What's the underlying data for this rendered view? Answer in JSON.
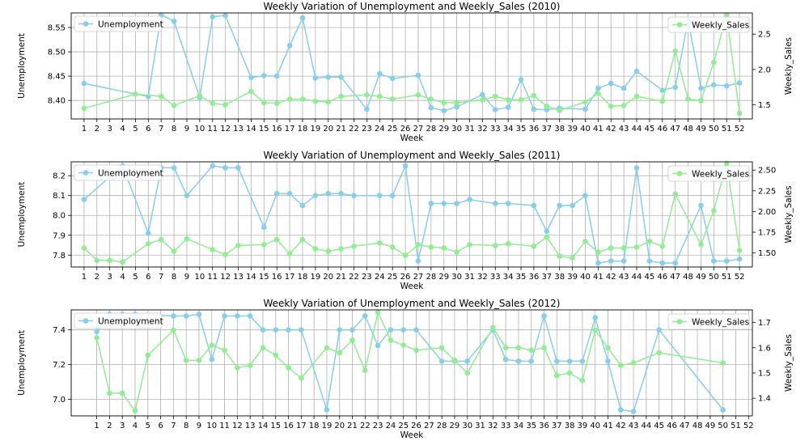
{
  "colors": {
    "unemployment": "#87ceeb",
    "weekly_sales": "#90ee90",
    "grid": "#b0b0b0"
  },
  "chart_data": [
    {
      "type": "line",
      "title": "Weekly Variation of Unemployment and Weekly_Sales (2010)",
      "xlabel": "Week",
      "ylabel_left": "Unemployment",
      "ylabel_right": "Weekly_Sales",
      "x_ticks": [
        1,
        2,
        3,
        4,
        5,
        6,
        7,
        8,
        9,
        10,
        11,
        12,
        13,
        14,
        15,
        16,
        17,
        18,
        19,
        20,
        21,
        22,
        23,
        24,
        25,
        26,
        27,
        28,
        29,
        30,
        31,
        32,
        33,
        34,
        35,
        36,
        37,
        38,
        39,
        40,
        41,
        42,
        43,
        44,
        45,
        46,
        47,
        48,
        49,
        50,
        51,
        52
      ],
      "xlim": [
        0,
        53
      ],
      "y_left": {
        "lim": [
          8.362,
          8.58
        ],
        "ticks": [
          8.4,
          8.45,
          8.5,
          8.55
        ],
        "tick_labels": [
          "8.40",
          "8.45",
          "8.50",
          "8.55"
        ]
      },
      "y_right": {
        "lim": [
          1.3,
          2.8
        ],
        "ticks": [
          1.5,
          2.0,
          2.5
        ],
        "tick_labels": [
          "1.5",
          "2.0",
          "2.5"
        ]
      },
      "grid": true,
      "legend_placement": {
        "left": "upper-left",
        "right": "upper-right"
      },
      "series": [
        {
          "name": "Unemployment",
          "axis": "left",
          "x": [
            1,
            6,
            7,
            8,
            10,
            11,
            12,
            14,
            15,
            16,
            17,
            18,
            19,
            20,
            21,
            23,
            24,
            25,
            27,
            28,
            29,
            30,
            32,
            33,
            34,
            35,
            36,
            37,
            38,
            40,
            41,
            42,
            43,
            44,
            46,
            47,
            48,
            49,
            50,
            51,
            52
          ],
          "y": [
            8.435,
            8.408,
            8.576,
            8.563,
            8.406,
            8.572,
            8.575,
            8.447,
            8.451,
            8.45,
            8.513,
            8.57,
            8.446,
            8.448,
            8.448,
            8.382,
            8.455,
            8.445,
            8.452,
            8.385,
            8.379,
            8.387,
            8.412,
            8.381,
            8.386,
            8.443,
            8.382,
            8.381,
            8.384,
            8.382,
            8.425,
            8.435,
            8.425,
            8.46,
            8.421,
            8.427,
            8.565,
            8.425,
            8.432,
            8.43,
            8.436
          ]
        },
        {
          "name": "Weekly_Sales",
          "axis": "right",
          "x": [
            1,
            5,
            7,
            8,
            10,
            11,
            12,
            14,
            15,
            16,
            17,
            18,
            19,
            20,
            21,
            23,
            24,
            25,
            27,
            28,
            29,
            30,
            32,
            33,
            34,
            35,
            36,
            37,
            38,
            40,
            41,
            42,
            43,
            44,
            46,
            47,
            48,
            49,
            50,
            51,
            52
          ],
          "y": [
            1.45,
            1.65,
            1.62,
            1.49,
            1.63,
            1.52,
            1.5,
            1.69,
            1.53,
            1.52,
            1.58,
            1.58,
            1.55,
            1.54,
            1.62,
            1.64,
            1.62,
            1.58,
            1.64,
            1.58,
            1.53,
            1.53,
            1.57,
            1.62,
            1.57,
            1.57,
            1.63,
            1.48,
            1.42,
            1.54,
            1.66,
            1.48,
            1.49,
            1.62,
            1.55,
            2.26,
            1.58,
            1.56,
            2.1,
            2.77,
            1.38
          ]
        }
      ]
    },
    {
      "type": "line",
      "title": "Weekly Variation of Unemployment and Weekly_Sales (2011)",
      "xlabel": "Week",
      "ylabel_left": "Unemployment",
      "ylabel_right": "Weekly_Sales",
      "x_ticks": [
        1,
        2,
        3,
        4,
        5,
        6,
        7,
        8,
        9,
        10,
        11,
        12,
        13,
        14,
        15,
        16,
        17,
        18,
        19,
        20,
        21,
        22,
        23,
        24,
        25,
        26,
        27,
        28,
        29,
        30,
        31,
        32,
        33,
        34,
        35,
        36,
        37,
        38,
        39,
        40,
        41,
        42,
        43,
        44,
        45,
        46,
        47,
        48,
        49,
        50,
        51,
        52
      ],
      "xlim": [
        0,
        53
      ],
      "y_left": {
        "lim": [
          7.74,
          8.27
        ],
        "ticks": [
          7.8,
          7.9,
          8.0,
          8.1,
          8.2
        ],
        "tick_labels": [
          "7.8",
          "7.9",
          "8.0",
          "8.1",
          "8.2"
        ]
      },
      "y_right": {
        "lim": [
          1.33,
          2.6
        ],
        "ticks": [
          1.5,
          1.75,
          2.0,
          2.25,
          2.5
        ],
        "tick_labels": [
          "1.50",
          "1.75",
          "2.00",
          "2.25",
          "2.50"
        ]
      },
      "grid": true,
      "legend_placement": {
        "left": "upper-left",
        "right": "upper-right"
      },
      "series": [
        {
          "name": "Unemployment",
          "axis": "left",
          "x": [
            1,
            4,
            6,
            7,
            8,
            9,
            11,
            12,
            13,
            15,
            16,
            17,
            18,
            19,
            20,
            21,
            22,
            24,
            25,
            26,
            27,
            28,
            29,
            30,
            31,
            33,
            34,
            36,
            37,
            38,
            39,
            40,
            41,
            42,
            43,
            44,
            45,
            46,
            47,
            49,
            50,
            51,
            52
          ],
          "y": [
            8.08,
            8.25,
            7.91,
            8.24,
            8.24,
            8.1,
            8.25,
            8.24,
            8.24,
            7.94,
            8.11,
            8.11,
            8.05,
            8.1,
            8.11,
            8.11,
            8.1,
            8.1,
            8.1,
            8.25,
            7.77,
            8.06,
            8.06,
            8.06,
            8.08,
            8.06,
            8.06,
            8.05,
            7.92,
            8.05,
            8.05,
            8.1,
            7.76,
            7.77,
            7.77,
            8.24,
            7.77,
            7.76,
            7.76,
            8.05,
            7.77,
            7.77,
            7.78
          ]
        },
        {
          "name": "Weekly_Sales",
          "axis": "right",
          "x": [
            1,
            2,
            3,
            4,
            6,
            7,
            8,
            9,
            11,
            12,
            13,
            15,
            16,
            17,
            18,
            19,
            20,
            21,
            22,
            24,
            25,
            26,
            27,
            28,
            29,
            30,
            31,
            33,
            34,
            36,
            37,
            38,
            39,
            40,
            41,
            42,
            43,
            44,
            45,
            46,
            47,
            49,
            50,
            51,
            52
          ],
          "y": [
            1.56,
            1.41,
            1.41,
            1.39,
            1.61,
            1.66,
            1.52,
            1.67,
            1.54,
            1.48,
            1.59,
            1.6,
            1.66,
            1.49,
            1.66,
            1.55,
            1.52,
            1.55,
            1.58,
            1.62,
            1.57,
            1.47,
            1.6,
            1.57,
            1.56,
            1.51,
            1.6,
            1.59,
            1.61,
            1.58,
            1.69,
            1.46,
            1.44,
            1.64,
            1.51,
            1.56,
            1.56,
            1.57,
            1.64,
            1.58,
            2.21,
            1.6,
            2.01,
            2.58,
            1.53
          ]
        }
      ]
    },
    {
      "type": "line",
      "title": "Weekly Variation of Unemployment and Weekly_Sales (2012)",
      "xlabel": "Week",
      "ylabel_left": "Unemployment",
      "ylabel_right": "Weekly_Sales",
      "x_ticks": [
        1,
        2,
        3,
        4,
        5,
        6,
        7,
        8,
        9,
        10,
        11,
        12,
        13,
        14,
        15,
        16,
        17,
        18,
        19,
        20,
        21,
        22,
        23,
        24,
        25,
        26,
        27,
        28,
        29,
        30,
        31,
        32,
        33,
        34,
        35,
        36,
        37,
        38,
        39,
        40,
        41,
        42,
        43,
        44,
        45,
        46,
        47,
        48,
        49,
        50,
        51,
        52
      ],
      "xlim": [
        -1,
        52.3
      ],
      "y_left": {
        "lim": [
          6.905,
          7.515
        ],
        "ticks": [
          7.0,
          7.2,
          7.4
        ],
        "tick_labels": [
          "7.0",
          "7.2",
          "7.4"
        ]
      },
      "y_right": {
        "lim": [
          1.33,
          1.75
        ],
        "ticks": [
          1.4,
          1.5,
          1.6,
          1.7
        ],
        "tick_labels": [
          "1.4",
          "1.5",
          "1.6",
          "1.7"
        ]
      },
      "grid": true,
      "legend_placement": {
        "left": "upper-left",
        "right": "upper-right"
      },
      "series": [
        {
          "name": "Unemployment",
          "axis": "left",
          "x": [
            1,
            2,
            3,
            4,
            7,
            8,
            9,
            10,
            11,
            12,
            13,
            14,
            15,
            16,
            17,
            19,
            20,
            21,
            22,
            23,
            24,
            25,
            26,
            28,
            29,
            30,
            32,
            33,
            34,
            35,
            36,
            37,
            38,
            39,
            40,
            41,
            42,
            43,
            45,
            50
          ],
          "y": [
            7.39,
            7.49,
            7.49,
            7.49,
            7.48,
            7.48,
            7.49,
            7.23,
            7.48,
            7.48,
            7.48,
            7.4,
            7.4,
            7.4,
            7.4,
            6.94,
            7.4,
            7.4,
            7.48,
            7.31,
            7.4,
            7.4,
            7.4,
            7.22,
            7.22,
            7.22,
            7.4,
            7.23,
            7.22,
            7.22,
            7.48,
            7.22,
            7.22,
            7.22,
            7.47,
            7.22,
            6.94,
            6.93,
            7.4,
            6.94
          ]
        },
        {
          "name": "Weekly_Sales",
          "axis": "right",
          "x": [
            1,
            2,
            3,
            4,
            5,
            7,
            8,
            9,
            10,
            11,
            12,
            13,
            14,
            15,
            16,
            17,
            19,
            20,
            21,
            22,
            23,
            24,
            25,
            26,
            28,
            29,
            30,
            32,
            33,
            34,
            35,
            36,
            37,
            38,
            39,
            40,
            41,
            42,
            43,
            45,
            50
          ],
          "y": [
            1.64,
            1.42,
            1.42,
            1.35,
            1.57,
            1.67,
            1.55,
            1.55,
            1.61,
            1.59,
            1.52,
            1.53,
            1.6,
            1.57,
            1.52,
            1.48,
            1.6,
            1.58,
            1.63,
            1.51,
            1.74,
            1.63,
            1.61,
            1.59,
            1.6,
            1.55,
            1.5,
            1.68,
            1.6,
            1.6,
            1.59,
            1.6,
            1.49,
            1.5,
            1.47,
            1.67,
            1.6,
            1.53,
            1.54,
            1.58,
            1.54
          ]
        }
      ]
    }
  ]
}
